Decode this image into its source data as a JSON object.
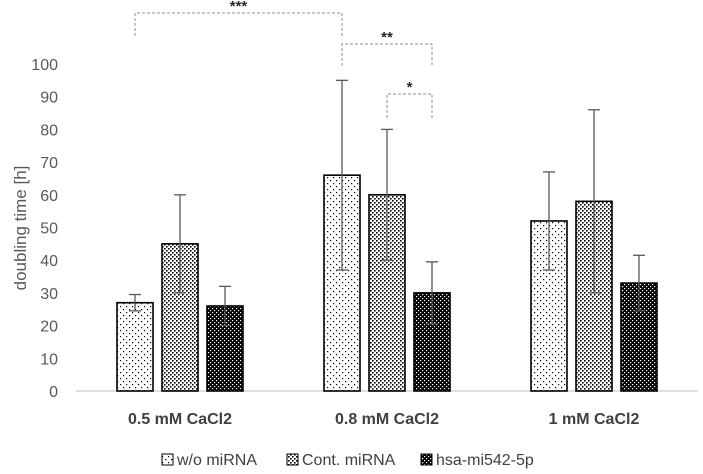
{
  "chart_data": {
    "type": "bar",
    "title": "",
    "xlabel": "",
    "ylabel": "doubling time [h]",
    "ylim": [
      0,
      100
    ],
    "yticks": [
      0,
      10,
      20,
      30,
      40,
      50,
      60,
      70,
      80,
      90,
      100
    ],
    "grid": false,
    "legend_position": "bottom",
    "categories": [
      "0.5 mM CaCl2",
      "0.8 mM CaCl2",
      "1 mM CaCl2"
    ],
    "series": [
      {
        "name": "w/o miRNA",
        "pattern": "sparse-dots",
        "values": [
          27,
          66,
          52
        ],
        "errors": [
          2.5,
          29,
          15
        ]
      },
      {
        "name": "Cont. miRNA",
        "pattern": "medium-dots",
        "values": [
          45,
          60,
          58
        ],
        "errors": [
          15,
          20,
          28
        ]
      },
      {
        "name": "hsa-mi542-5p",
        "pattern": "dense-dots",
        "values": [
          26,
          30,
          33
        ],
        "errors": [
          6,
          9.5,
          8.5
        ]
      }
    ],
    "significance": [
      {
        "label": "***",
        "from": {
          "category": 0,
          "series": 0
        },
        "to": {
          "category": 1,
          "series": 0
        }
      },
      {
        "label": "**",
        "from": {
          "category": 1,
          "series": 0
        },
        "to": {
          "category": 1,
          "series": 2
        }
      },
      {
        "label": "*",
        "from": {
          "category": 1,
          "series": 1
        },
        "to": {
          "category": 1,
          "series": 2
        }
      }
    ]
  }
}
